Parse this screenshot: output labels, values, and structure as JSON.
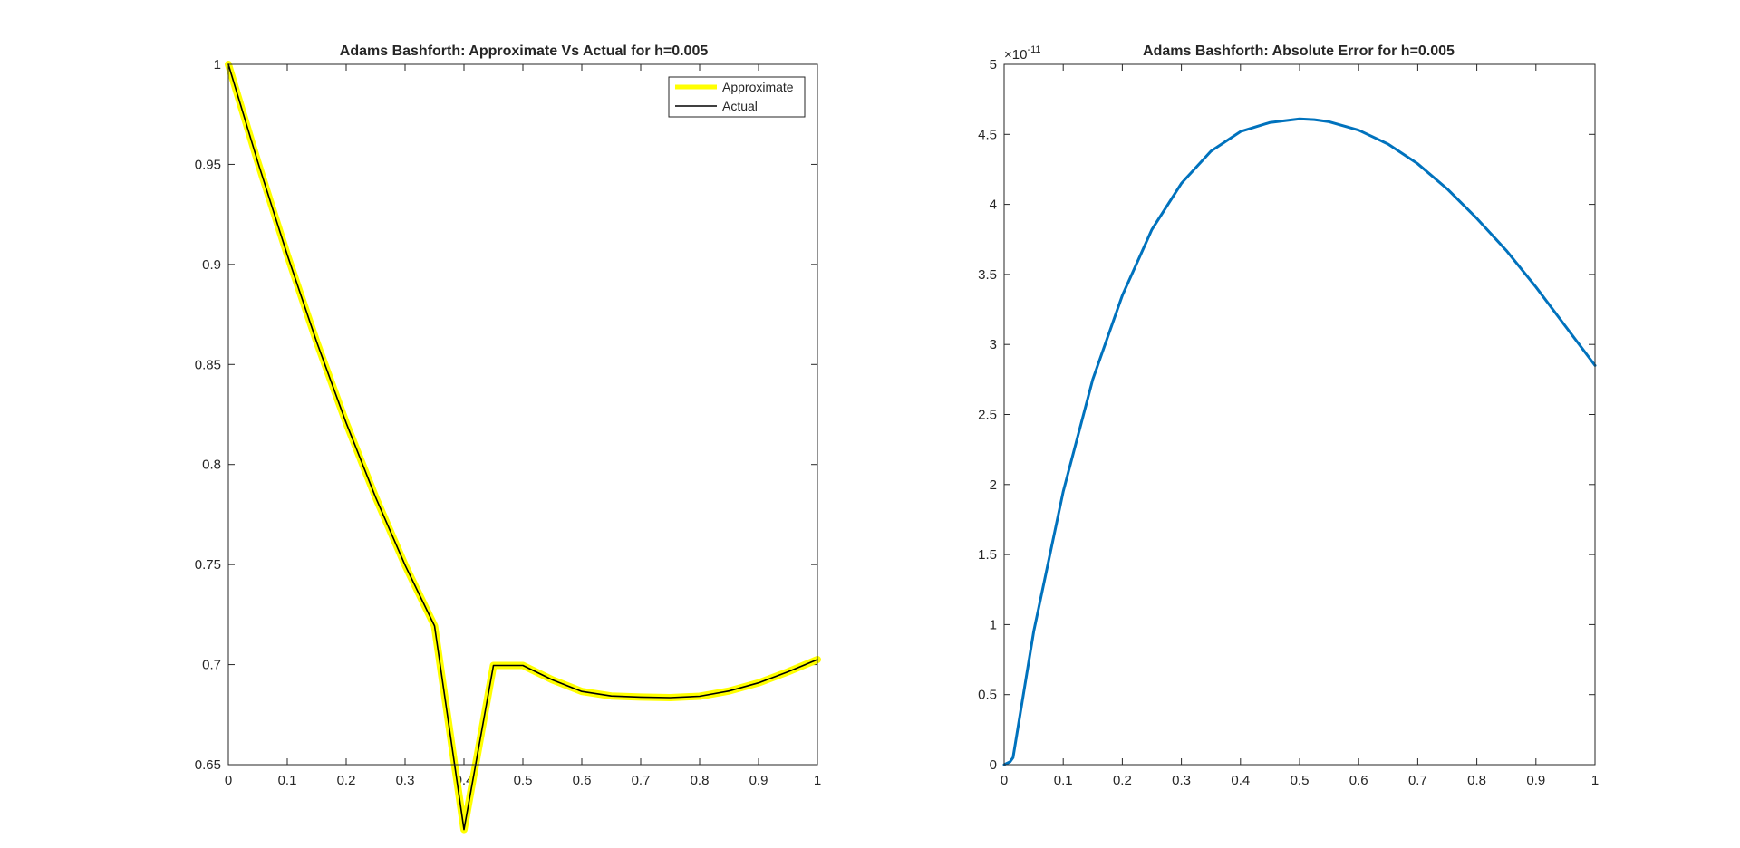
{
  "figure": {
    "background": "#ffffff",
    "axis_color": "#262626"
  },
  "chart_data": [
    {
      "type": "line",
      "title": "Adams Bashforth: Approximate Vs Actual for h=0.005",
      "xlabel": "",
      "ylabel": "",
      "xlim": [
        0,
        1
      ],
      "ylim": [
        0.65,
        1
      ],
      "xticks": [
        0,
        0.1,
        0.2,
        0.3,
        0.4,
        0.5,
        0.6,
        0.7,
        0.8,
        0.9,
        1
      ],
      "xtick_labels": [
        "0",
        "0.1",
        "0.2",
        "0.3",
        "0.4",
        "0.5",
        "0.6",
        "0.7",
        "0.8",
        "0.9",
        "1"
      ],
      "yticks": [
        0.65,
        0.7,
        0.75,
        0.8,
        0.85,
        0.9,
        0.95,
        1
      ],
      "ytick_labels": [
        "0.65",
        "0.7",
        "0.75",
        "0.8",
        "0.85",
        "0.9",
        "0.95",
        "1"
      ],
      "grid": false,
      "box": true,
      "legend": {
        "location": "top-right",
        "entries": [
          "Approximate",
          "Actual"
        ]
      },
      "x": [
        0,
        0.05,
        0.1,
        0.15,
        0.2,
        0.25,
        0.3,
        0.35,
        0.4,
        0.45,
        0.5,
        0.55,
        0.6,
        0.65,
        0.7,
        0.75,
        0.8,
        0.85,
        0.9,
        0.95,
        1
      ],
      "series": [
        {
          "name": "Approximate",
          "color": "#ffff00",
          "style": "thick",
          "values": [
            1.0,
            0.9512,
            0.9048,
            0.8612,
            0.8208,
            0.7836,
            0.7497,
            0.7193,
            0.6176,
            0.6996,
            0.6996,
            0.6924,
            0.6866,
            0.6843,
            0.6838,
            0.6835,
            0.6842,
            0.6868,
            0.6909,
            0.6964,
            0.7025
          ]
        },
        {
          "name": "Actual",
          "color": "#000000",
          "style": "thin",
          "values": [
            1.0,
            0.9512,
            0.9048,
            0.8612,
            0.8208,
            0.7836,
            0.7497,
            0.7193,
            0.6176,
            0.6996,
            0.6996,
            0.6924,
            0.6866,
            0.6843,
            0.6838,
            0.6835,
            0.6842,
            0.6868,
            0.6909,
            0.6964,
            0.7025
          ]
        }
      ]
    },
    {
      "type": "line",
      "title": "Adams Bashforth: Absolute Error for h=0.005",
      "xlabel": "",
      "ylabel": "",
      "xlim": [
        0,
        1
      ],
      "ylim": [
        0,
        5
      ],
      "y_exponent_label": "×10",
      "y_exponent_power": "-11",
      "xticks": [
        0,
        0.1,
        0.2,
        0.3,
        0.4,
        0.5,
        0.6,
        0.7,
        0.8,
        0.9,
        1
      ],
      "xtick_labels": [
        "0",
        "0.1",
        "0.2",
        "0.3",
        "0.4",
        "0.5",
        "0.6",
        "0.7",
        "0.8",
        "0.9",
        "1"
      ],
      "yticks": [
        0,
        0.5,
        1,
        1.5,
        2,
        2.5,
        3,
        3.5,
        4,
        4.5,
        5
      ],
      "ytick_labels": [
        "0",
        "0.5",
        "1",
        "1.5",
        "2",
        "2.5",
        "3",
        "3.5",
        "4",
        "4.5",
        "5"
      ],
      "grid": false,
      "box": true,
      "x": [
        0,
        0.01,
        0.015,
        0.05,
        0.1,
        0.15,
        0.2,
        0.25,
        0.3,
        0.35,
        0.4,
        0.45,
        0.5,
        0.525,
        0.55,
        0.6,
        0.65,
        0.7,
        0.75,
        0.8,
        0.85,
        0.9,
        0.95,
        1
      ],
      "series": [
        {
          "name": "",
          "color": "#0072bd",
          "values": [
            0,
            0.02,
            0.05,
            0.95,
            1.95,
            2.75,
            3.35,
            3.82,
            4.15,
            4.38,
            4.52,
            4.585,
            4.61,
            4.605,
            4.59,
            4.53,
            4.43,
            4.29,
            4.11,
            3.9,
            3.67,
            3.41,
            3.13,
            2.85
          ]
        }
      ]
    }
  ]
}
